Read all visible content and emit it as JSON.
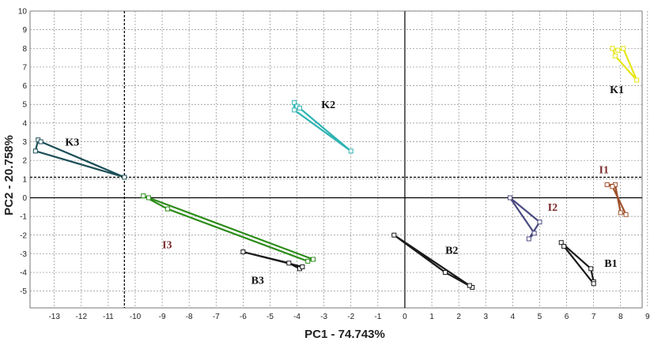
{
  "chart_data": {
    "type": "scatter",
    "xlabel": "PC1 - 74.743%",
    "ylabel": "PC2 - 20.758%",
    "xlim": [
      -13.9,
      8.8
    ],
    "ylim": [
      -5.9,
      10
    ],
    "x_ticks": [
      -13,
      -12,
      -11,
      -10,
      -9,
      -8,
      -7,
      -6,
      -5,
      -4,
      -3,
      -2,
      -1,
      0,
      1,
      2,
      3,
      4,
      5,
      6,
      7,
      8,
      9
    ],
    "y_ticks": [
      -5,
      -4,
      -3,
      -2,
      -1,
      0,
      1,
      2,
      3,
      4,
      5,
      6,
      7,
      8,
      9,
      10
    ],
    "grid": true,
    "reference_lines": {
      "x": -10.4,
      "y": 1.1
    },
    "series": [
      {
        "name": "K1",
        "color": "#e6e619",
        "label_at": [
          7.6,
          5.6
        ],
        "points": [
          [
            7.7,
            8.0
          ],
          [
            7.9,
            7.9
          ],
          [
            8.1,
            8.0
          ],
          [
            8.6,
            6.3
          ],
          [
            7.8,
            7.6
          ]
        ]
      },
      {
        "name": "K2",
        "color": "#2fb3b3",
        "label_at": [
          -3.1,
          4.8
        ],
        "points": [
          [
            -4.1,
            5.1
          ],
          [
            -4.0,
            4.9
          ],
          [
            -3.9,
            4.8
          ],
          [
            -2.0,
            2.5
          ],
          [
            -4.1,
            4.7
          ]
        ]
      },
      {
        "name": "K3",
        "color": "#1c4f57",
        "label_at": [
          -12.6,
          2.8
        ],
        "points": [
          [
            -13.6,
            3.1
          ],
          [
            -13.7,
            2.5
          ],
          [
            -10.4,
            1.1
          ],
          [
            -13.5,
            3.0
          ]
        ]
      },
      {
        "name": "I1",
        "color": "#a0522d",
        "label_at": [
          7.2,
          1.3
        ],
        "points": [
          [
            7.5,
            0.7
          ],
          [
            7.8,
            0.7
          ],
          [
            8.0,
            -0.8
          ],
          [
            8.2,
            -0.9
          ],
          [
            7.7,
            0.6
          ]
        ]
      },
      {
        "name": "I2",
        "color": "#4a4a80",
        "label_at": [
          5.3,
          -0.7
        ],
        "points": [
          [
            3.9,
            0.0
          ],
          [
            4.8,
            -1.9
          ],
          [
            4.6,
            -2.2
          ],
          [
            5.0,
            -1.3
          ]
        ]
      },
      {
        "name": "I3",
        "color": "#2d8c1a",
        "label_at": [
          -9.0,
          -2.7
        ],
        "points": [
          [
            -9.7,
            0.1
          ],
          [
            -8.8,
            -0.6
          ],
          [
            -3.6,
            -3.4
          ],
          [
            -3.4,
            -3.3
          ],
          [
            -9.5,
            0.0
          ]
        ]
      },
      {
        "name": "B1",
        "color": "#1a1a1a",
        "label_at": [
          7.4,
          -3.7
        ],
        "points": [
          [
            5.8,
            -2.4
          ],
          [
            6.9,
            -3.8
          ],
          [
            7.0,
            -4.5
          ],
          [
            7.0,
            -4.6
          ],
          [
            5.9,
            -2.6
          ]
        ]
      },
      {
        "name": "B2",
        "color": "#1a1a1a",
        "label_at": [
          1.5,
          -3.0
        ],
        "points": [
          [
            -0.4,
            -2.0
          ],
          [
            1.5,
            -4.0
          ],
          [
            2.5,
            -4.8
          ],
          [
            2.4,
            -4.7
          ]
        ]
      },
      {
        "name": "B3",
        "color": "#1a1a1a",
        "label_at": [
          -5.7,
          -4.6
        ],
        "points": [
          [
            -6.0,
            -2.9
          ],
          [
            -4.3,
            -3.5
          ],
          [
            -3.9,
            -3.8
          ],
          [
            -3.8,
            -3.7
          ]
        ]
      }
    ]
  }
}
